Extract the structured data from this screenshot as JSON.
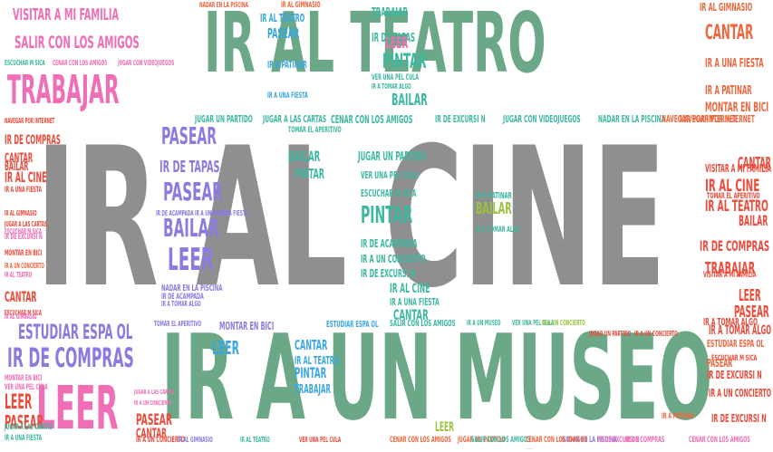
{
  "title": "",
  "colors": {
    "gray": "#8f8f8f",
    "green": "#6aa887",
    "pink": "#f06eb6",
    "purple": "#8a7be0",
    "orange": "#f0663d",
    "blue": "#3aa6e0",
    "teal": "#3cb8a0",
    "lime": "#9ac43d",
    "red": "#ee4b3b"
  },
  "words": [
    {
      "text": "IR AL CINE",
      "color": "gray"
    },
    {
      "text": "IR AL TEATRO",
      "color": "green"
    },
    {
      "text": "IR A UN MUSEO",
      "color": "green"
    },
    {
      "text": "TRABAJAR",
      "color": "pink"
    },
    {
      "text": "VISITAR A MI FAMILIA",
      "color": "pink"
    },
    {
      "text": "SALIR CON LOS AMIGOS",
      "color": "pink"
    },
    {
      "text": "NADAR EN LA PISCINA",
      "color": "orange"
    },
    {
      "text": "IR AL GIMNASIO",
      "color": "orange"
    },
    {
      "text": "IR AL TEATRO",
      "color": "blue"
    },
    {
      "text": "TRABAJAR",
      "color": "teal"
    },
    {
      "text": "ESCUCHAR M   SICA",
      "color": "teal"
    },
    {
      "text": "CENAR CON LOS AMIGOS",
      "color": "pink"
    },
    {
      "text": "JUGAR CON VIDEOJUEGOS",
      "color": "pink"
    },
    {
      "text": "PASEAR",
      "color": "blue"
    },
    {
      "text": "IR DE TAPAS",
      "color": "teal"
    },
    {
      "text": "LEER",
      "color": "pink"
    },
    {
      "text": "PINTAR",
      "color": "teal"
    },
    {
      "text": "BAILAR",
      "color": "teal"
    },
    {
      "text": "IR A UNA FIESTA",
      "color": "blue"
    },
    {
      "text": "IR A PATINAR",
      "color": "blue"
    },
    {
      "text": "IR A TOMAR ALGO",
      "color": "teal"
    },
    {
      "text": "VER UNA PEL   CULA",
      "color": "teal"
    },
    {
      "text": "IR AL GIMNASIO",
      "color": "orange"
    },
    {
      "text": "CANTAR",
      "color": "orange"
    },
    {
      "text": "IR A UNA FIESTA",
      "color": "orange"
    },
    {
      "text": "IR A PATINAR",
      "color": "orange"
    },
    {
      "text": "MONTAR EN BICI",
      "color": "orange"
    },
    {
      "text": "NAVEGAR POR INTERNET",
      "color": "orange"
    },
    {
      "text": "JUGAR UN PARTIDO",
      "color": "teal"
    },
    {
      "text": "JUGAR A LAS CARTAS",
      "color": "teal"
    },
    {
      "text": "CENAR CON LOS AMIGOS",
      "color": "teal"
    },
    {
      "text": "IR DE EXCURSI   N",
      "color": "teal"
    },
    {
      "text": "JUGAR CON VIDEOJUEGOS",
      "color": "teal"
    },
    {
      "text": "NADAR EN LA PISCINA",
      "color": "teal"
    },
    {
      "text": "NAVEGAR POR INTERNET",
      "color": "orange"
    },
    {
      "text": "PASEAR",
      "color": "purple"
    },
    {
      "text": "IR DE TAPAS",
      "color": "purple"
    },
    {
      "text": "PASEAR",
      "color": "purple"
    },
    {
      "text": "BAILAR",
      "color": "purple"
    },
    {
      "text": "LEER",
      "color": "purple"
    },
    {
      "text": "TOMAR EL APERITIVO",
      "color": "teal"
    },
    {
      "text": "BAILAR",
      "color": "teal"
    },
    {
      "text": "PINTAR",
      "color": "teal"
    },
    {
      "text": "JUGAR UN PARTIDO",
      "color": "teal"
    },
    {
      "text": "VER UNA PEL   CULA",
      "color": "teal"
    },
    {
      "text": "ESCUCHAR M   SICA",
      "color": "teal"
    },
    {
      "text": "PINTAR",
      "color": "teal"
    },
    {
      "text": "BAILAR",
      "color": "lime"
    },
    {
      "text": "IR A PATINAR",
      "color": "teal"
    },
    {
      "text": "IR A TOMAR ALGO",
      "color": "teal"
    },
    {
      "text": "IR DE ACAMPADA",
      "color": "teal"
    },
    {
      "text": "IR A UN CONCIERTO",
      "color": "teal"
    },
    {
      "text": "IR DE EXCURSI   N",
      "color": "teal"
    },
    {
      "text": "IR AL CINE",
      "color": "teal"
    },
    {
      "text": "IR A UNA FIESTA",
      "color": "teal"
    },
    {
      "text": "CANTAR",
      "color": "teal"
    },
    {
      "text": "VISITAR A MI FAMILIA",
      "color": "red"
    },
    {
      "text": "TOMAR EL APERITIVO",
      "color": "red"
    },
    {
      "text": "IR DE COMPRAS",
      "color": "red"
    },
    {
      "text": "TRABAJAR",
      "color": "red"
    },
    {
      "text": "IR AL TEATRO",
      "color": "red"
    },
    {
      "text": "IR AL CINE",
      "color": "red"
    },
    {
      "text": "CANTAR",
      "color": "red"
    },
    {
      "text": "BAILAR",
      "color": "red"
    },
    {
      "text": "LEER",
      "color": "red"
    },
    {
      "text": "PASEAR",
      "color": "red"
    },
    {
      "text": "IR A UN CONCIERTO",
      "color": "red"
    },
    {
      "text": "ESCUCHAR M   SICA",
      "color": "red"
    },
    {
      "text": "IR DE EXCURSI   N",
      "color": "red"
    },
    {
      "text": "IR A TOMAR ALGO",
      "color": "red"
    },
    {
      "text": "ESTUDIAR ESPA   OL",
      "color": "orange"
    },
    {
      "text": "ESTUDIAR ESPA   OL",
      "color": "purple"
    },
    {
      "text": "IR DE COMPRAS",
      "color": "purple"
    },
    {
      "text": "LEER",
      "color": "pink"
    },
    {
      "text": "LEER",
      "color": "blue"
    },
    {
      "text": "CANTAR",
      "color": "blue"
    },
    {
      "text": "IR AL TEATRO",
      "color": "blue"
    },
    {
      "text": "PINTAR",
      "color": "blue"
    },
    {
      "text": "TRABAJAR",
      "color": "blue"
    },
    {
      "text": "LEER",
      "color": "lime"
    },
    {
      "text": "PASEAR",
      "color": "red"
    },
    {
      "text": "CANTAR",
      "color": "red"
    },
    {
      "text": "IR A UN CONCIERTO",
      "color": "red"
    },
    {
      "text": "IR DE EXCURSI   N",
      "color": "red"
    },
    {
      "text": "PASEAR",
      "color": "orange"
    },
    {
      "text": "LEER",
      "color": "red"
    },
    {
      "text": "PASEAR",
      "color": "red"
    },
    {
      "text": "CANTAR",
      "color": "red"
    },
    {
      "text": "IR AL CINE",
      "color": "red"
    },
    {
      "text": "BAILAR",
      "color": "red"
    },
    {
      "text": "MONTAR EN BICI",
      "color": "purple"
    },
    {
      "text": "TOMAR EL APERITIVO",
      "color": "purple"
    },
    {
      "text": "NADAR EN LA PISCINA",
      "color": "purple"
    },
    {
      "text": "IR DE ACAMPADA",
      "color": "purple"
    },
    {
      "text": "SALIR CON LOS AMIGOS",
      "color": "teal"
    },
    {
      "text": "IR A UN MUSEO",
      "color": "teal"
    },
    {
      "text": "VER UNA PEL   CULA",
      "color": "teal"
    },
    {
      "text": "JUGAR A LAS CARTAS",
      "color": "pink"
    },
    {
      "text": "IR A UN CONCIERTO",
      "color": "pink"
    },
    {
      "text": "IR AL GIMNASIO",
      "color": "purple"
    },
    {
      "text": "CENAR CON LOS AMIGOS",
      "color": "orange"
    },
    {
      "text": "JUGAR UN PARTIDO",
      "color": "orange"
    },
    {
      "text": "MONTAR EN BICI",
      "color": "pink"
    },
    {
      "text": "VER UNA PEL   CULA",
      "color": "pink"
    },
    {
      "text": "IR A UNA FIESTA",
      "color": "purple"
    },
    {
      "text": "ESTUDIAR ESPA   OL",
      "color": "blue"
    },
    {
      "text": "IR A TOMAR ALGO",
      "color": "red"
    },
    {
      "text": "VISITAR A MI FAMILIA",
      "color": "red"
    },
    {
      "text": "IR A UN MUSEO",
      "color": "purple"
    },
    {
      "text": "IR DE ACAMPADA",
      "color": "purple"
    },
    {
      "text": "IR AL GIMNASIO",
      "color": "red"
    },
    {
      "text": "JUGAR A LAS CARTAS",
      "color": "red"
    },
    {
      "text": "IR A UN CONCIERTO",
      "color": "lime"
    },
    {
      "text": "IR A PATINAR",
      "color": "orange"
    },
    {
      "text": "IR A TOMAR ALGO",
      "color": "purple"
    },
    {
      "text": "IR DE COMPRAS",
      "color": "red"
    },
    {
      "text": "CANTAR",
      "color": "red"
    },
    {
      "text": "IR A UNA FIESTA",
      "color": "red"
    },
    {
      "text": "ESCUCHAR M   SICA",
      "color": "pink"
    },
    {
      "text": "IR DE EXCURSI   N",
      "color": "pink"
    },
    {
      "text": "MONTAR EN BICI",
      "color": "red"
    },
    {
      "text": "NAVEGAR POR INTERNET",
      "color": "red"
    },
    {
      "text": "IR A UN CONCIERTO",
      "color": "orange"
    },
    {
      "text": "NADAR EN LA PISCINA",
      "color": "purple"
    },
    {
      "text": "IR AL TEATRO",
      "color": "pink"
    },
    {
      "text": "ESCUCHAR M   SICA",
      "color": "red"
    },
    {
      "text": "JUGAR UN PARTIDO",
      "color": "red"
    },
    {
      "text": "IR AL GIMNASIO",
      "color": "pink"
    },
    {
      "text": "IR DE COMPRAS",
      "color": "pink"
    },
    {
      "text": "IR AL TEATRO",
      "color": "teal"
    },
    {
      "text": "SALIR CON LOS AMIGOS",
      "color": "teal"
    },
    {
      "text": "IR A UNA FIESTA",
      "color": "teal"
    },
    {
      "text": "VER UNA PEL   CULA",
      "color": "red"
    },
    {
      "text": "JUGAR A LAS CARTAS",
      "color": "teal"
    },
    {
      "text": "IR A UN CONCIERTO",
      "color": "red"
    },
    {
      "text": "IR DE EXCURSI   N",
      "color": "pink"
    },
    {
      "text": "CENAR CON LOS AMIGOS",
      "color": "pink"
    },
    {
      "text": "CENAR CON LOS AMIGOS",
      "color": "orange"
    },
    {
      "text": "JUGAR CON VIDEOJUEGOS",
      "color": "orange"
    },
    {
      "text": "NADAR EN LA PISCINA",
      "color": "orange"
    },
    {
      "text": "ESTUDIAR ESPA   OL",
      "color": "orange"
    }
  ]
}
